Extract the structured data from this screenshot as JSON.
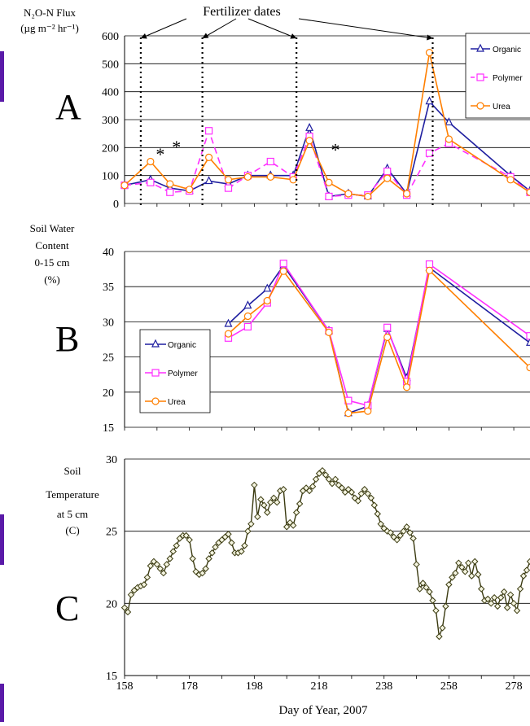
{
  "colors": {
    "organic": "#1f1fa0",
    "polymer": "#ff2fff",
    "urea": "#ff7f00",
    "temp": "#3a3a10",
    "accent_bar": "#5a1aa8"
  },
  "annotation": {
    "fertilizer_dates": "Fertilizer dates",
    "star": "*"
  },
  "chart_data": [
    {
      "type": "line",
      "panel": "A",
      "ylabel": [
        "N₂O-N Flux",
        "(µg m⁻² hr⁻¹)"
      ],
      "ylim": [
        0,
        600
      ],
      "yticks": [
        0,
        100,
        200,
        300,
        400,
        500,
        600
      ],
      "xlim": [
        158,
        283
      ],
      "grid": true,
      "legend_position": "top-right",
      "fertilizer_days": [
        163,
        182,
        211,
        253
      ],
      "asterisk_days": [
        169,
        174,
        223
      ],
      "series": [
        {
          "name": "Organic",
          "key": "organic",
          "marker": "triangle",
          "x": [
            158,
            166,
            172,
            178,
            184,
            190,
            196,
            203,
            210,
            215,
            221,
            227,
            233,
            239,
            245,
            252,
            258,
            277,
            283
          ],
          "y": [
            65,
            85,
            55,
            45,
            80,
            70,
            100,
            100,
            100,
            270,
            25,
            35,
            25,
            125,
            35,
            365,
            290,
            100,
            45
          ]
        },
        {
          "name": "Polymer",
          "key": "polymer",
          "marker": "square",
          "dash": true,
          "x": [
            158,
            166,
            172,
            178,
            184,
            190,
            196,
            203,
            210,
            215,
            221,
            227,
            233,
            239,
            245,
            252,
            258,
            277,
            283
          ],
          "y": [
            65,
            75,
            40,
            45,
            260,
            55,
            100,
            150,
            95,
            240,
            25,
            30,
            30,
            115,
            30,
            180,
            215,
            95,
            40
          ]
        },
        {
          "name": "Urea",
          "key": "urea",
          "marker": "circle",
          "x": [
            158,
            166,
            172,
            178,
            184,
            190,
            196,
            203,
            210,
            215,
            221,
            227,
            233,
            239,
            245,
            252,
            258,
            277,
            283
          ],
          "y": [
            65,
            150,
            70,
            50,
            165,
            85,
            95,
            95,
            85,
            225,
            75,
            35,
            25,
            90,
            35,
            540,
            230,
            85,
            40
          ]
        }
      ]
    },
    {
      "type": "line",
      "panel": "B",
      "ylabel": [
        "Soil Water",
        "Content",
        "0-15 cm",
        "(%)"
      ],
      "ylim": [
        15,
        40
      ],
      "yticks": [
        15,
        20,
        25,
        30,
        35,
        40
      ],
      "xlim": [
        158,
        283
      ],
      "grid": true,
      "legend_position": "center-left",
      "series": [
        {
          "name": "Organic",
          "key": "organic",
          "marker": "triangle",
          "x": [
            190,
            196,
            202,
            207,
            221,
            227,
            233,
            239,
            245,
            252,
            283
          ],
          "y": [
            29.7,
            32.3,
            34.7,
            38.0,
            28.7,
            17.0,
            18.0,
            29.0,
            22.0,
            37.7,
            27.0
          ]
        },
        {
          "name": "Polymer",
          "key": "polymer",
          "marker": "square",
          "x": [
            190,
            196,
            202,
            207,
            221,
            227,
            233,
            239,
            245,
            252,
            283
          ],
          "y": [
            27.7,
            29.3,
            32.7,
            38.3,
            28.7,
            18.8,
            18.1,
            29.2,
            21.5,
            38.2,
            28.0
          ]
        },
        {
          "name": "Urea",
          "key": "urea",
          "marker": "circle",
          "x": [
            190,
            196,
            202,
            207,
            221,
            227,
            233,
            239,
            245,
            252,
            283
          ],
          "y": [
            28.3,
            30.8,
            33.0,
            37.2,
            28.5,
            17.0,
            17.3,
            27.8,
            20.7,
            37.3,
            23.5
          ]
        }
      ]
    },
    {
      "type": "line",
      "panel": "C",
      "ylabel": [
        "Soil",
        "Temperature",
        "at 5 cm",
        "(C)"
      ],
      "ylim": [
        15,
        30
      ],
      "yticks": [
        15,
        20,
        25,
        30
      ],
      "xlim": [
        158,
        283
      ],
      "xticks": [
        158,
        178,
        198,
        218,
        238,
        258,
        278
      ],
      "xlabel": "Day of Year, 2007",
      "grid": true,
      "series": [
        {
          "name": "",
          "key": "temp",
          "marker": "diamond",
          "x": [
            158,
            159,
            160,
            161,
            162,
            163,
            164,
            165,
            166,
            167,
            168,
            169,
            170,
            171,
            172,
            173,
            174,
            175,
            176,
            177,
            178,
            179,
            180,
            181,
            182,
            183,
            184,
            185,
            186,
            187,
            188,
            189,
            190,
            191,
            192,
            193,
            194,
            195,
            196,
            197,
            198,
            199,
            200,
            201,
            202,
            203,
            204,
            205,
            206,
            207,
            208,
            209,
            210,
            211,
            212,
            213,
            214,
            215,
            216,
            217,
            218,
            219,
            220,
            221,
            222,
            223,
            224,
            225,
            226,
            227,
            228,
            229,
            230,
            231,
            232,
            233,
            234,
            235,
            236,
            237,
            238,
            239,
            240,
            241,
            242,
            243,
            244,
            245,
            246,
            247,
            248,
            249,
            250,
            251,
            252,
            253,
            254,
            255,
            256,
            257,
            258,
            259,
            260,
            261,
            262,
            263,
            264,
            265,
            266,
            267,
            268,
            269,
            270,
            271,
            272,
            273,
            274,
            275,
            276,
            277,
            278,
            279,
            280,
            281,
            282,
            283
          ],
          "y": [
            19.7,
            19.4,
            20.6,
            20.9,
            21.1,
            21.2,
            21.3,
            21.8,
            22.6,
            22.9,
            22.7,
            22.4,
            22.1,
            22.7,
            23.1,
            23.6,
            24.0,
            24.5,
            24.7,
            24.7,
            24.4,
            23.1,
            22.2,
            22.0,
            22.1,
            22.4,
            23.1,
            23.5,
            23.9,
            24.2,
            24.4,
            24.6,
            24.8,
            24.2,
            23.5,
            23.5,
            23.6,
            24.0,
            25.0,
            25.5,
            28.2,
            26.0,
            27.2,
            26.8,
            26.3,
            27.0,
            27.3,
            27.0,
            27.8,
            27.9,
            25.3,
            25.6,
            25.4,
            26.3,
            26.9,
            27.8,
            28.0,
            27.8,
            28.1,
            28.6,
            29.0,
            29.2,
            28.9,
            28.6,
            28.3,
            28.6,
            28.2,
            28.0,
            27.7,
            27.9,
            27.7,
            27.3,
            27.1,
            27.6,
            27.9,
            27.6,
            27.3,
            26.8,
            26.2,
            25.5,
            25.2,
            25.0,
            24.9,
            24.6,
            24.4,
            24.7,
            25.0,
            25.3,
            24.9,
            24.5,
            22.7,
            21.0,
            21.4,
            21.1,
            20.8,
            20.2,
            19.5,
            17.7,
            18.3,
            19.8,
            21.3,
            21.8,
            22.1,
            22.8,
            22.5,
            22.2,
            22.8,
            21.9,
            22.9,
            22.0,
            21.0,
            20.2,
            20.3,
            20.0,
            20.4,
            19.8,
            20.4,
            20.8,
            19.7,
            20.6,
            20.0,
            19.5,
            21.0,
            21.9,
            22.3,
            22.9
          ]
        }
      ]
    }
  ]
}
